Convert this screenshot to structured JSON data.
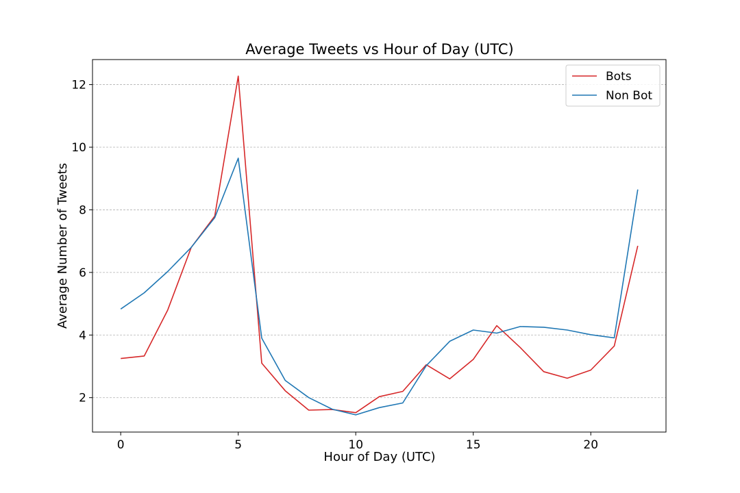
{
  "chart_data": {
    "type": "line",
    "title": "Average Tweets vs Hour of Day (UTC)",
    "xlabel": "Hour of Day (UTC)",
    "ylabel": "Average Number of Tweets",
    "xlim": [
      -1.2,
      23.2
    ],
    "ylim": [
      0.9,
      12.8
    ],
    "xticks": [
      0,
      5,
      10,
      15,
      20
    ],
    "yticks": [
      2,
      4,
      6,
      8,
      10,
      12
    ],
    "grid": "horizontal dashed",
    "legend_position": "top-right",
    "x": [
      0,
      1,
      2,
      3,
      4,
      5,
      6,
      7,
      8,
      9,
      10,
      11,
      12,
      13,
      14,
      15,
      16,
      17,
      18,
      19,
      20,
      21,
      22
    ],
    "series": [
      {
        "name": "Bots",
        "color": "#d62728",
        "values": [
          3.25,
          3.33,
          4.8,
          6.8,
          7.8,
          12.27,
          3.1,
          2.22,
          1.6,
          1.62,
          1.52,
          2.03,
          2.2,
          3.05,
          2.6,
          3.22,
          4.3,
          3.6,
          2.83,
          2.62,
          2.88,
          3.65,
          6.85
        ]
      },
      {
        "name": "Non Bot",
        "color": "#1f77b4",
        "values": [
          4.83,
          5.35,
          6.03,
          6.8,
          7.75,
          9.65,
          3.9,
          2.55,
          2.0,
          1.63,
          1.45,
          1.68,
          1.83,
          3.02,
          3.8,
          4.16,
          4.06,
          4.27,
          4.25,
          4.16,
          4.01,
          3.91,
          8.65
        ]
      }
    ]
  }
}
